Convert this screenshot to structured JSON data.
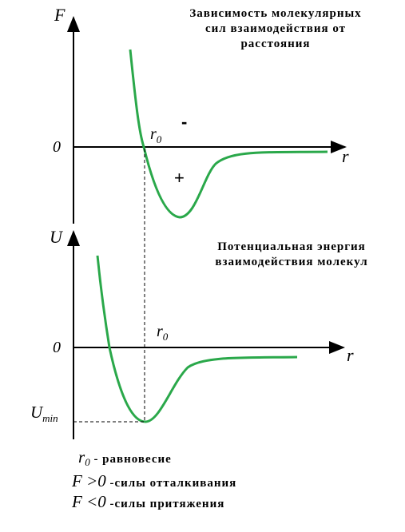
{
  "top_chart": {
    "title_line1": "Зависимость молекулярных",
    "title_line2": "сил взаимодействия от",
    "title_line3": "расстояния",
    "y_axis_label": "F",
    "x_axis_label": "r",
    "zero_label": "0",
    "r0_label": "r",
    "r0_sub": "0",
    "minus_sign": "-",
    "plus_sign": "+"
  },
  "bottom_chart": {
    "title_line1": "Потенциальная энергия",
    "title_line2": "взаимодействия молекул",
    "y_axis_label": "U",
    "x_axis_label": "r",
    "zero_label": "0",
    "r0_label": "r",
    "r0_sub": "0",
    "umin_label": "U",
    "umin_sub": "min"
  },
  "legend": {
    "line1_sym": "r",
    "line1_sub": "0",
    "line1_text": " - равновесие",
    "line2_sym": "F >0",
    "line2_text": " -силы отталкивания",
    "line3_sym": "F <0",
    "line3_text": " -силы притяжения"
  },
  "colors": {
    "curve": "#2aa84a",
    "axis": "#000000"
  }
}
